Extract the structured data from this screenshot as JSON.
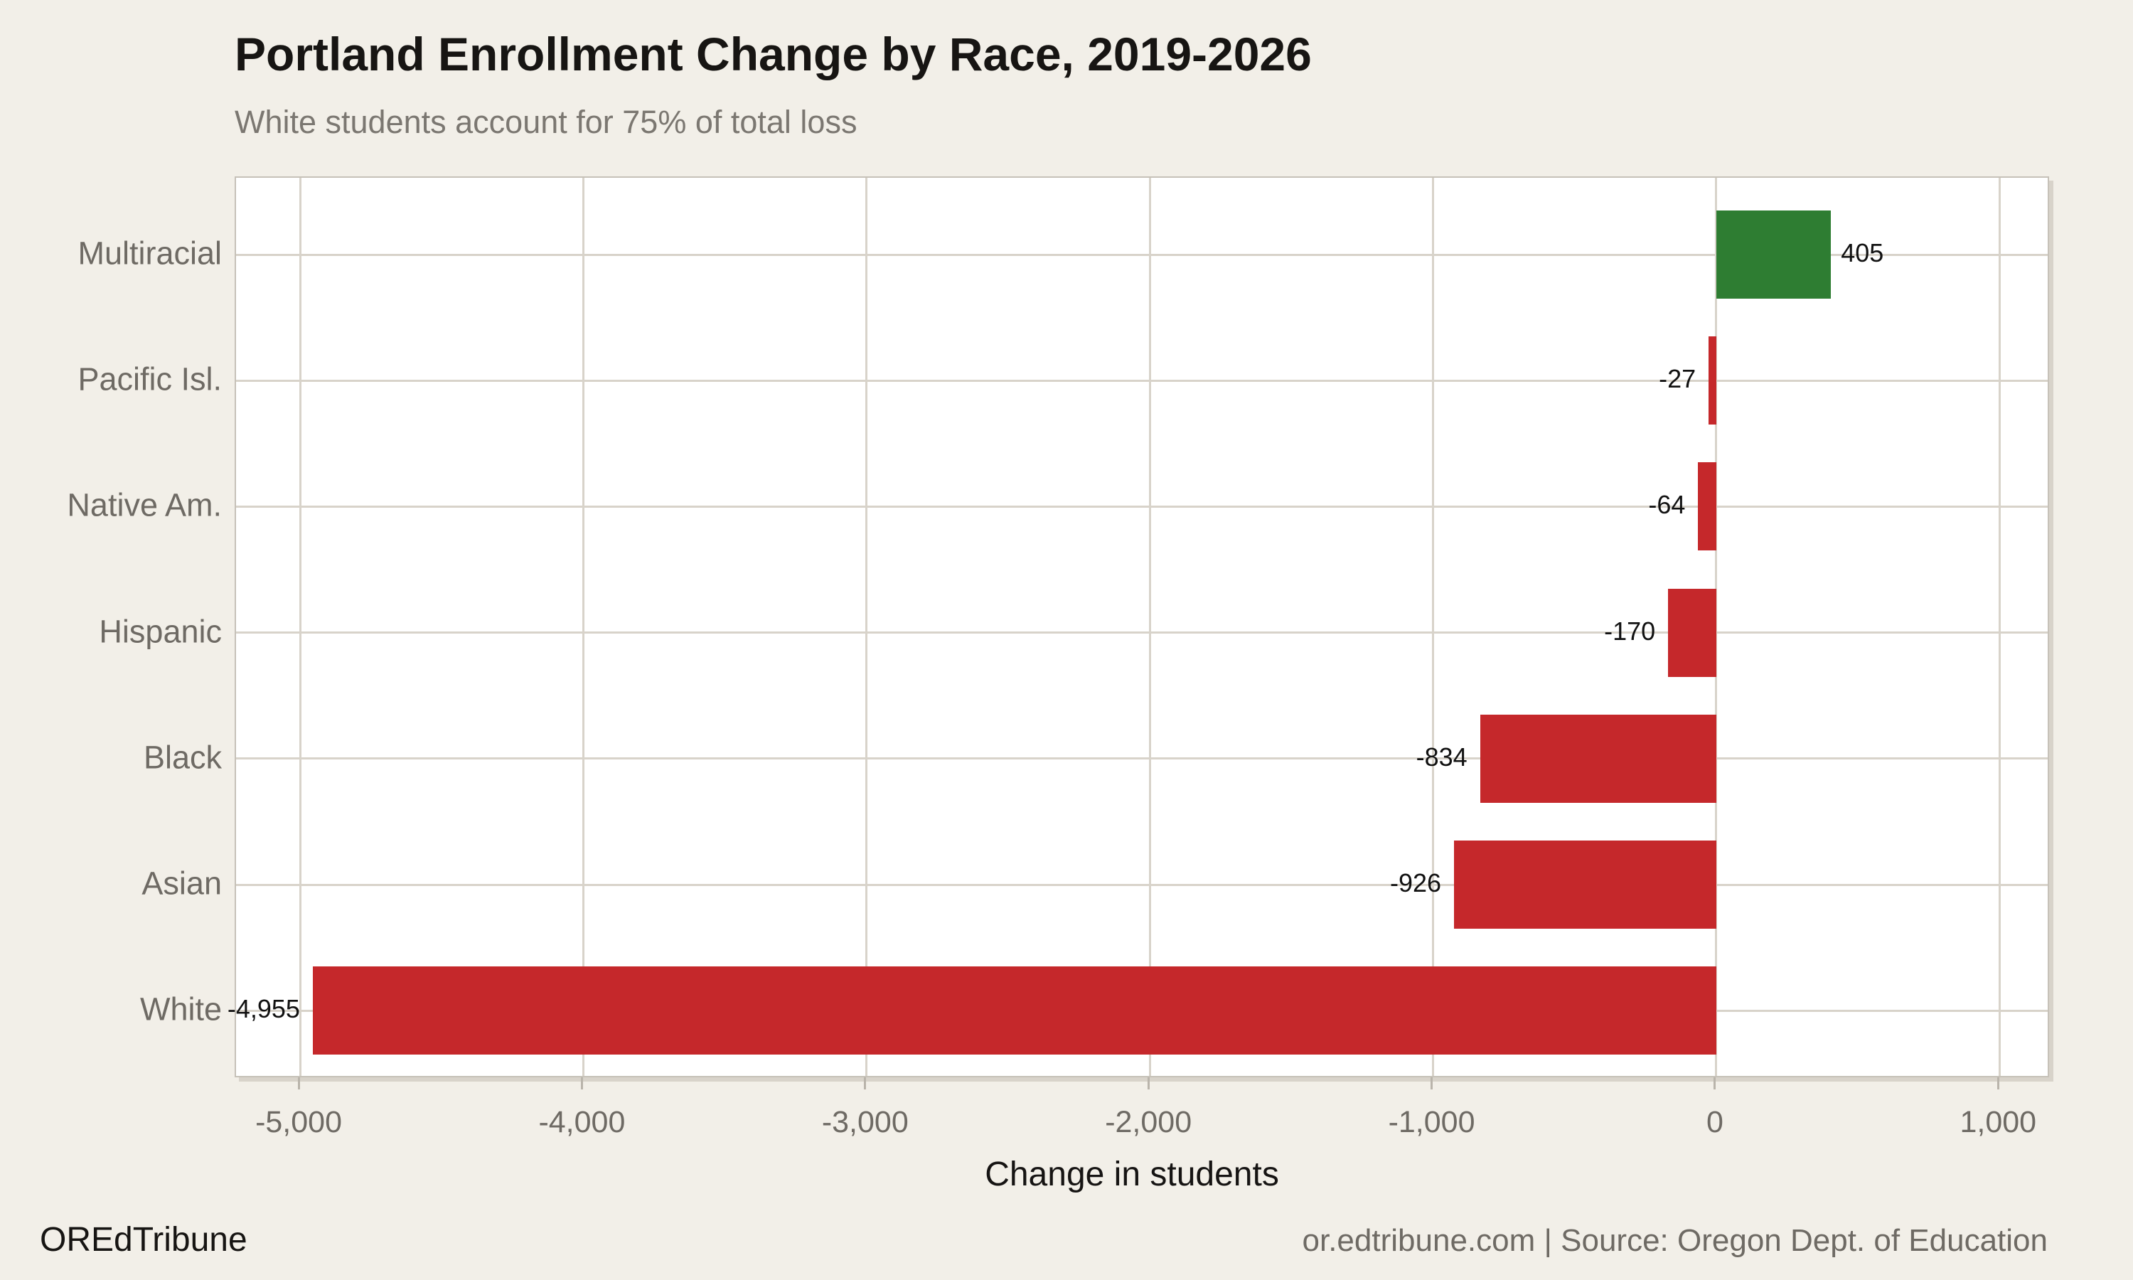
{
  "title": "Portland Enrollment Change by Race, 2019-2026",
  "subtitle": "White students account for 75% of total loss",
  "footer": {
    "brand": "OREdTribune",
    "source": "or.edtribune.com | Source: Oregon Dept. of Education"
  },
  "chart_data": {
    "type": "bar",
    "orientation": "horizontal",
    "title": "Portland Enrollment Change by Race, 2019-2026",
    "subtitle": "White students account for 75% of total loss",
    "xlabel": "Change in students",
    "categories": [
      "Multiracial",
      "Pacific Isl.",
      "Native Am.",
      "Hispanic",
      "Black",
      "Asian",
      "White"
    ],
    "values": [
      405,
      -27,
      -64,
      -170,
      -834,
      -926,
      -4955
    ],
    "value_labels": [
      "405",
      "-27",
      "-64",
      "-170",
      "-834",
      "-926",
      "-4,955"
    ],
    "xticks": [
      -5000,
      -4000,
      -3000,
      -2000,
      -1000,
      0,
      1000
    ],
    "xtick_labels": [
      "-5,000",
      "-4,000",
      "-3,000",
      "-2,000",
      "-1,000",
      "0",
      "1,000"
    ],
    "xlim": [
      -5226,
      1180
    ],
    "grid": true,
    "legend": "none",
    "colors": {
      "positive": "#2e7d32",
      "negative": "#c5282b"
    }
  },
  "page_colors": {
    "background": "#f2efe8",
    "plot_background": "#ffffff",
    "gridline": "#d8d3ca",
    "plot_border": "#c6c1b8",
    "value_label_text": "#111111",
    "axis_text": "#6e6a64",
    "title_text": "#171513",
    "subtitle_text": "#7b7771"
  }
}
